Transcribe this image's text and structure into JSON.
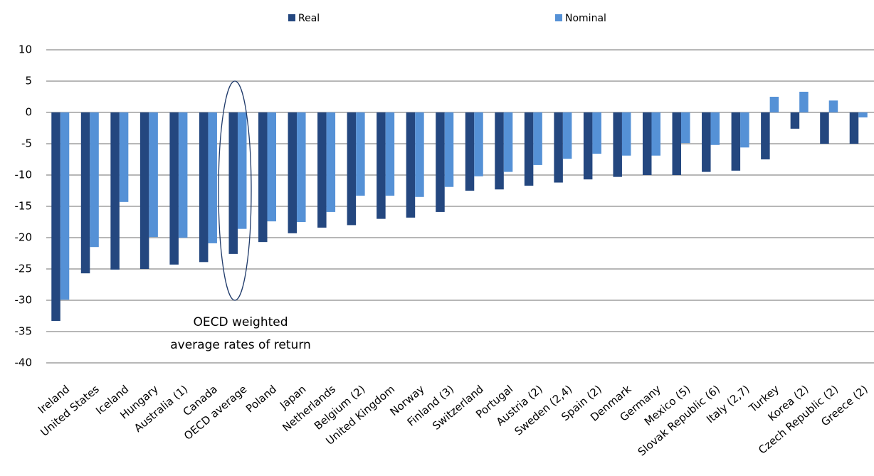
{
  "chart_data": {
    "type": "bar",
    "categories": [
      "Ireland",
      "United States",
      "Iceland",
      "Hungary",
      "Australia (1)",
      "Canada",
      "OECD average",
      "Poland",
      "Japan",
      "Netherlands",
      "Belgium (2)",
      "United Kingdom",
      "Norway",
      "Finland (3)",
      "Switzerland",
      "Portugal",
      "Austria (2)",
      "Sweden (2,4)",
      "Spain (2)",
      "Denmark",
      "Germany",
      "Mexico (5)",
      "Slovak Republic (6)",
      "Italy (2,7)",
      "Turkey",
      "Korea (2)",
      "Czech Republic (2)",
      "Greece (2)"
    ],
    "series": [
      {
        "name": "Real",
        "color": "#24477f",
        "values": [
          -33.3,
          -25.7,
          -25.1,
          -25,
          -24.3,
          -23.9,
          -22.6,
          -20.7,
          -19.3,
          -18.4,
          -18,
          -17,
          -16.8,
          -15.9,
          -12.5,
          -12.3,
          -11.7,
          -11.2,
          -10.7,
          -10.3,
          -10,
          -10,
          -9.5,
          -9.3,
          -7.5,
          -2.6,
          -5,
          -5
        ]
      },
      {
        "name": "Nominal",
        "color": "#5591d6",
        "values": [
          -29.9,
          -21.5,
          -14.3,
          -19.9,
          -20,
          -20.9,
          -18.6,
          -17.4,
          -17.5,
          -15.9,
          -13.3,
          -13.3,
          -13.5,
          -11.9,
          -10.2,
          -9.5,
          -8.4,
          -7.4,
          -6.6,
          -6.9,
          -6.9,
          -4.9,
          -5.2,
          -5.6,
          2.5,
          3.3,
          1.9,
          -0.8
        ]
      }
    ],
    "ylim": [
      -40,
      10
    ],
    "yticks": [
      -40,
      -35,
      -30,
      -25,
      -20,
      -15,
      -10,
      -5,
      0,
      5,
      10
    ],
    "grid": true,
    "legend": "top",
    "annotation": [
      "OECD weighted",
      "average rates of return"
    ]
  }
}
